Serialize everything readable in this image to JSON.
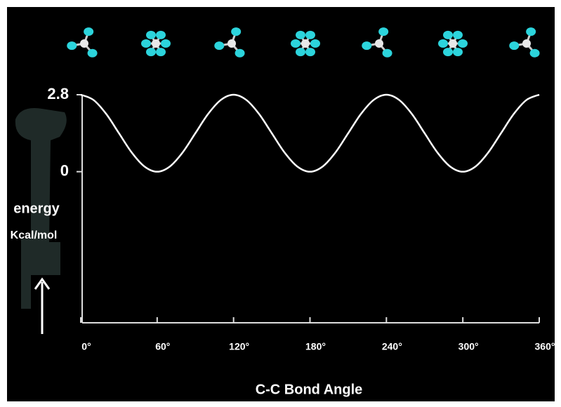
{
  "chart_data": {
    "type": "line",
    "y_label_lines": [
      "energy",
      "Kcal/mol"
    ],
    "x_label": "C-C Bond Angle",
    "x": [
      0,
      10,
      20,
      30,
      40,
      50,
      60,
      70,
      80,
      90,
      100,
      110,
      120,
      130,
      140,
      150,
      160,
      170,
      180,
      190,
      200,
      210,
      220,
      230,
      240,
      250,
      260,
      270,
      280,
      290,
      300,
      310,
      320,
      330,
      340,
      350,
      360
    ],
    "series": [
      {
        "color": "#ffffff",
        "values": [
          2.8,
          2.61,
          2.1,
          1.4,
          0.7,
          0.19,
          0,
          0.19,
          0.7,
          1.4,
          2.1,
          2.61,
          2.8,
          2.61,
          2.1,
          1.4,
          0.7,
          0.19,
          0,
          0.19,
          0.7,
          1.4,
          2.1,
          2.61,
          2.8,
          2.61,
          2.1,
          1.4,
          0.7,
          0.19,
          0,
          0.19,
          0.7,
          1.4,
          2.1,
          2.61,
          2.8
        ]
      }
    ],
    "xlim": [
      0,
      360
    ],
    "xticks": [
      {
        "value": 0,
        "label": "0°"
      },
      {
        "value": 60,
        "label": "60°"
      },
      {
        "value": 120,
        "label": "120°"
      },
      {
        "value": 180,
        "label": "180°"
      },
      {
        "value": 240,
        "label": "240°"
      },
      {
        "value": 300,
        "label": "300°"
      },
      {
        "value": 360,
        "label": "360°"
      }
    ],
    "ylim": [
      -5.5,
      2.8
    ],
    "yticks": [
      0,
      2.8
    ]
  }
}
